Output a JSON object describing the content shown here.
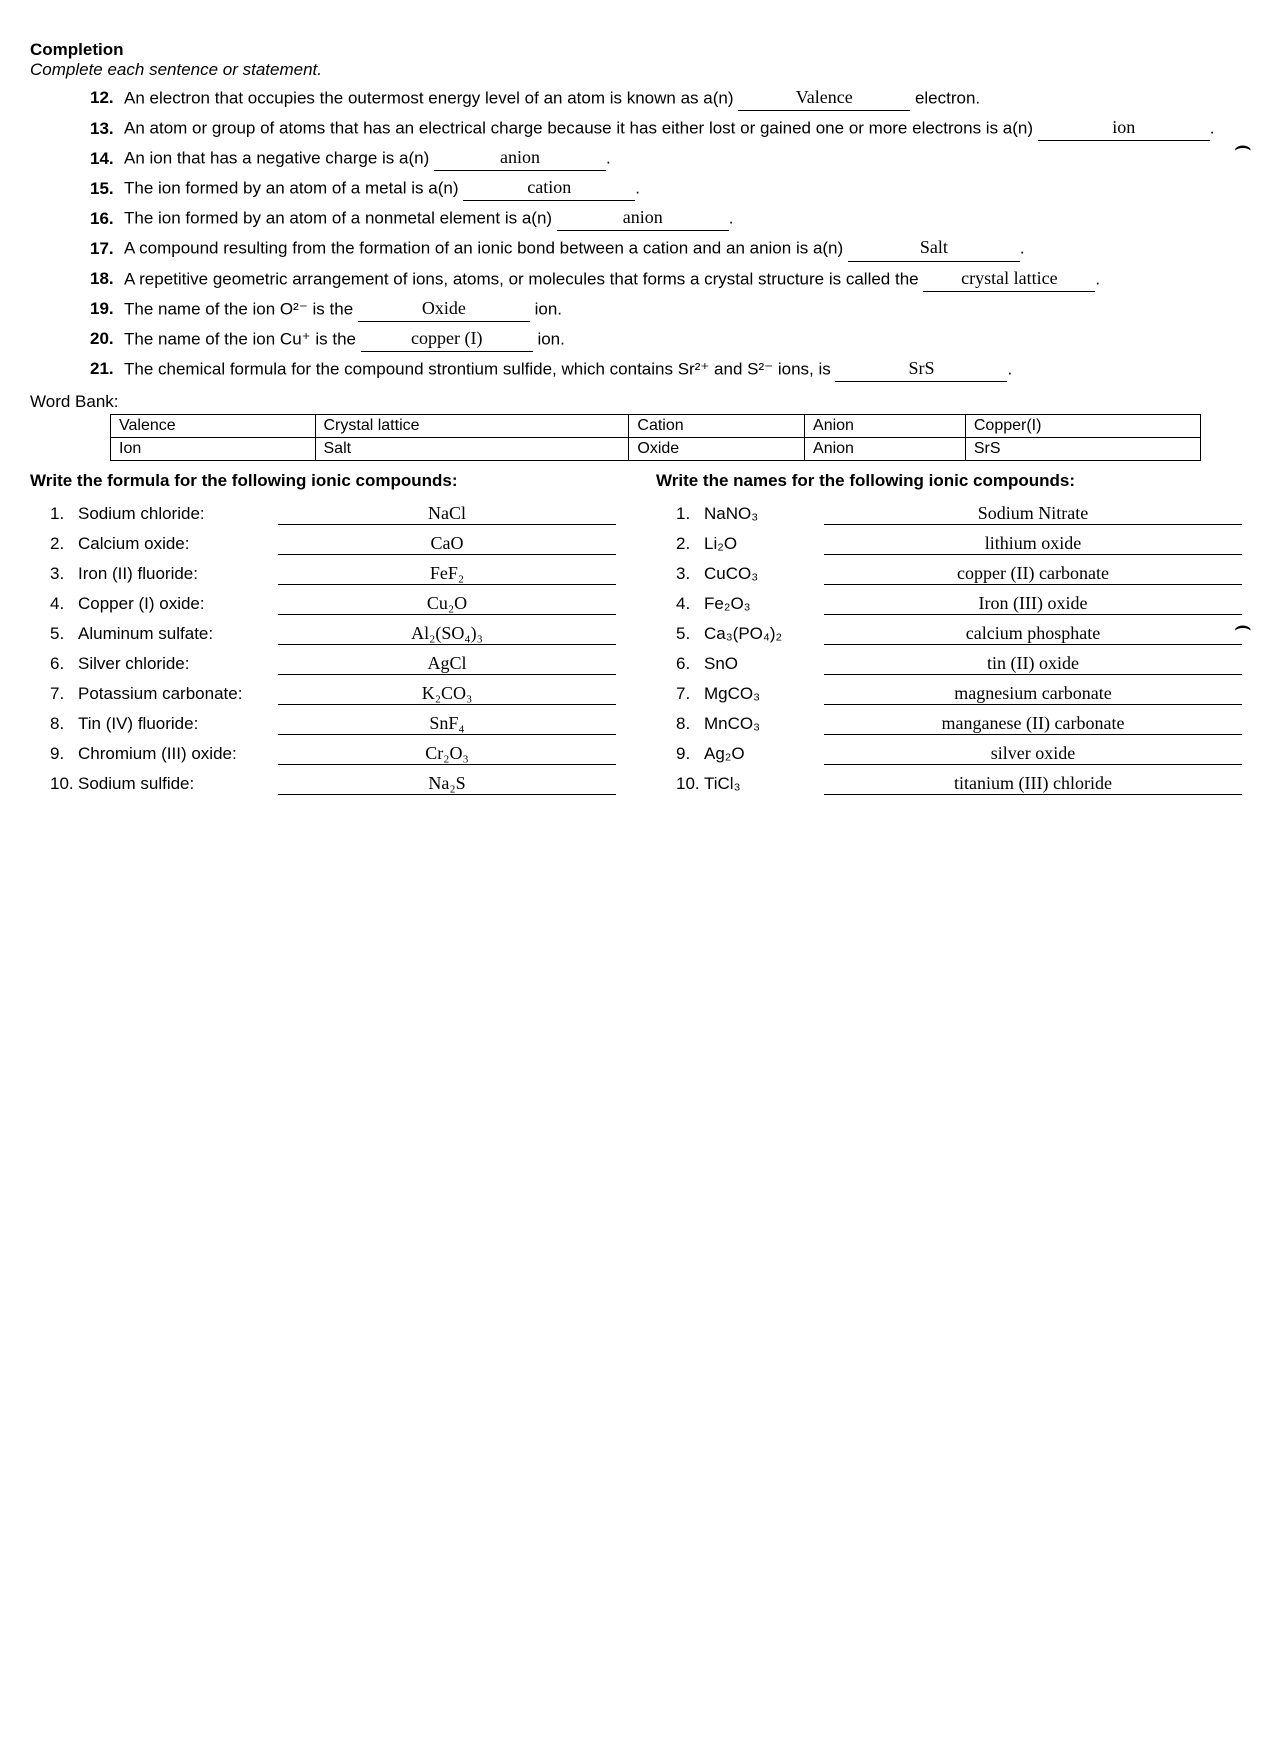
{
  "header": {
    "title": "Completion",
    "instruction": "Complete each sentence or statement."
  },
  "completion": [
    {
      "n": "12.",
      "before": "An electron that occupies the outermost energy level of an atom is known as a(n)",
      "answer": "Valence",
      "after": " electron."
    },
    {
      "n": "13.",
      "before": "An atom or group of atoms that has an electrical charge because it has either lost or gained one or more electrons is a(n)",
      "answer": "ion",
      "after": "."
    },
    {
      "n": "14.",
      "before": "An ion that has a negative charge is a(n)",
      "answer": "anion",
      "after": "."
    },
    {
      "n": "15.",
      "before": "The ion formed by an atom of a metal is a(n)",
      "answer": "cation",
      "after": "."
    },
    {
      "n": "16.",
      "before": "The ion formed by an atom of a nonmetal element is a(n)",
      "answer": "anion",
      "after": "."
    },
    {
      "n": "17.",
      "before": "A compound resulting from the formation of an ionic bond between a cation and an anion is a(n)",
      "answer": "Salt",
      "after": "."
    },
    {
      "n": "18.",
      "before": "A repetitive geometric arrangement of ions, atoms, or molecules that forms a crystal structure is called the",
      "answer": "crystal lattice",
      "after": "."
    },
    {
      "n": "19.",
      "before": "The name of the ion O²⁻ is the",
      "answer": "Oxide",
      "after": " ion."
    },
    {
      "n": "20.",
      "before": "The name of the ion Cu⁺ is the",
      "answer": "copper (I)",
      "after": " ion."
    },
    {
      "n": "21.",
      "before": "The chemical formula for the compound strontium sulfide, which contains Sr²⁺ and S²⁻ ions, is",
      "answer": "SrS",
      "after": "."
    }
  ],
  "wordbank": {
    "label": "Word Bank:",
    "rows": [
      [
        "Valence",
        "Crystal lattice",
        "Cation",
        "Anion",
        "Copper(I)"
      ],
      [
        "Ion",
        "Salt",
        "Oxide",
        "Anion",
        "SrS"
      ]
    ]
  },
  "left": {
    "heading": "Write the formula for the following ionic compounds:",
    "items": [
      {
        "n": "1.",
        "label": "Sodium chloride:",
        "ans": "NaCl"
      },
      {
        "n": "2.",
        "label": "Calcium oxide:",
        "ans": "CaO"
      },
      {
        "n": "3.",
        "label": "Iron (II) fluoride:",
        "ans": "FeF₂"
      },
      {
        "n": "4.",
        "label": "Copper (I) oxide:",
        "ans": "Cu₂O"
      },
      {
        "n": "5.",
        "label": "Aluminum sulfate:",
        "ans": "Al₂(SO₄)₃"
      },
      {
        "n": "6.",
        "label": "Silver chloride:",
        "ans": "AgCl"
      },
      {
        "n": "7.",
        "label": "Potassium carbonate:",
        "ans": "K₂CO₃"
      },
      {
        "n": "8.",
        "label": "Tin (IV) fluoride:",
        "ans": "SnF₄"
      },
      {
        "n": "9.",
        "label": "Chromium (III) oxide:",
        "ans": "Cr₂O₃"
      },
      {
        "n": "10.",
        "label": "Sodium sulfide:",
        "ans": "Na₂S"
      }
    ]
  },
  "right": {
    "heading": "Write the names for the following ionic compounds:",
    "items": [
      {
        "n": "1.",
        "label": "NaNO₃",
        "ans": "Sodium Nitrate"
      },
      {
        "n": "2.",
        "label": "Li₂O",
        "ans": "lithium oxide"
      },
      {
        "n": "3.",
        "label": "CuCO₃",
        "ans": "copper (II) carbonate"
      },
      {
        "n": "4.",
        "label": "Fe₂O₃",
        "ans": "Iron (III) oxide"
      },
      {
        "n": "5.",
        "label": "Ca₃(PO₄)₂",
        "ans": "calcium phosphate"
      },
      {
        "n": "6.",
        "label": "SnO",
        "ans": "tin (II) oxide"
      },
      {
        "n": "7.",
        "label": "MgCO₃",
        "ans": "magnesium carbonate"
      },
      {
        "n": "8.",
        "label": "MnCO₃",
        "ans": "manganese (II) carbonate"
      },
      {
        "n": "9.",
        "label": "Ag₂O",
        "ans": "silver oxide"
      },
      {
        "n": "10.",
        "label": "TiCl₃",
        "ans": "titanium (III) chloride"
      }
    ]
  }
}
